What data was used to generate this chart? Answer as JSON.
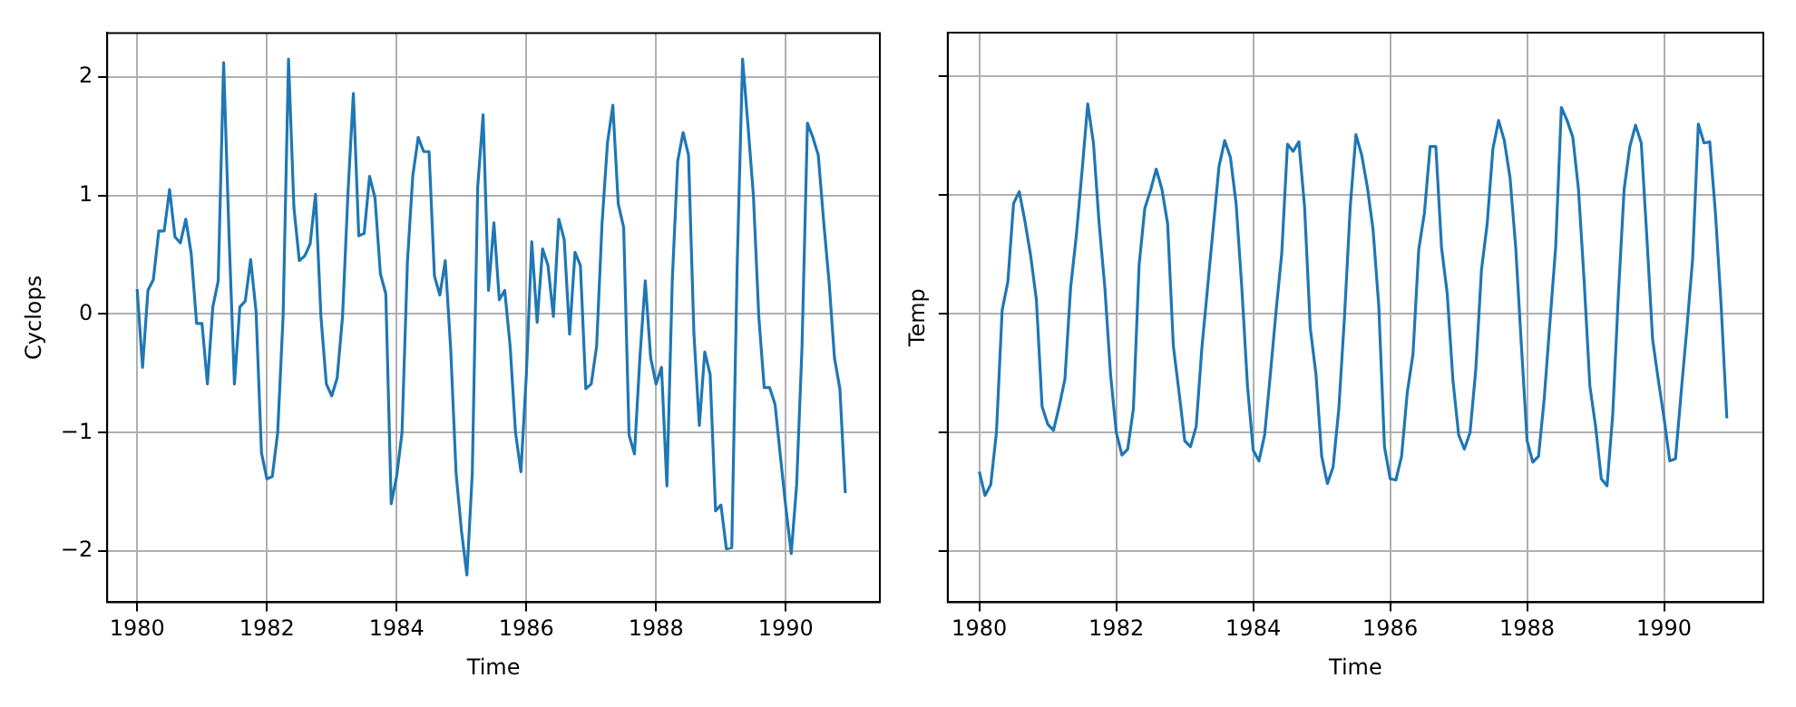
{
  "chart_data": [
    {
      "type": "line",
      "xlabel": "Time",
      "ylabel": "Cyclops",
      "grid": true,
      "legend": false,
      "x": [
        "1980-01",
        "1980-02",
        "1980-03",
        "1980-04",
        "1980-05",
        "1980-06",
        "1980-07",
        "1980-08",
        "1980-09",
        "1980-10",
        "1980-11",
        "1980-12",
        "1981-01",
        "1981-02",
        "1981-03",
        "1981-04",
        "1981-05",
        "1981-06",
        "1981-07",
        "1981-08",
        "1981-09",
        "1981-10",
        "1981-11",
        "1981-12",
        "1982-01",
        "1982-02",
        "1982-03",
        "1982-04",
        "1982-05",
        "1982-06",
        "1982-07",
        "1982-08",
        "1982-09",
        "1982-10",
        "1982-11",
        "1982-12",
        "1983-01",
        "1983-02",
        "1983-03",
        "1983-04",
        "1983-05",
        "1983-06",
        "1983-07",
        "1983-08",
        "1983-09",
        "1983-10",
        "1983-11",
        "1983-12",
        "1984-01",
        "1984-02",
        "1984-03",
        "1984-04",
        "1984-05",
        "1984-06",
        "1984-07",
        "1984-08",
        "1984-09",
        "1984-10",
        "1984-11",
        "1984-12",
        "1985-01",
        "1985-02",
        "1985-03",
        "1985-04",
        "1985-05",
        "1985-06",
        "1985-07",
        "1985-08",
        "1985-09",
        "1985-10",
        "1985-11",
        "1985-12",
        "1986-01",
        "1986-02",
        "1986-03",
        "1986-04",
        "1986-05",
        "1986-06",
        "1986-07",
        "1986-08",
        "1986-09",
        "1986-10",
        "1986-11",
        "1986-12",
        "1987-01",
        "1987-02",
        "1987-03",
        "1987-04",
        "1987-05",
        "1987-06",
        "1987-07",
        "1987-08",
        "1987-09",
        "1987-10",
        "1987-11",
        "1987-12",
        "1988-01",
        "1988-02",
        "1988-03",
        "1988-04",
        "1988-05",
        "1988-06",
        "1988-07",
        "1988-08",
        "1988-09",
        "1988-10",
        "1988-11",
        "1988-12",
        "1989-01",
        "1989-02",
        "1989-03",
        "1989-04",
        "1989-05",
        "1989-06",
        "1989-07",
        "1989-08",
        "1989-09",
        "1989-10",
        "1989-11",
        "1989-12",
        "1990-01",
        "1990-02",
        "1990-03",
        "1990-04",
        "1990-05",
        "1990-06",
        "1990-07",
        "1990-08",
        "1990-09",
        "1990-10",
        "1990-11",
        "1990-12"
      ],
      "series": [
        {
          "color": "#1f77b4",
          "values": [
            0.21,
            -0.45,
            0.2,
            0.29,
            0.7,
            0.7,
            1.05,
            0.65,
            0.6,
            0.8,
            0.51,
            -0.08,
            -0.08,
            -0.59,
            0.06,
            0.28,
            2.12,
            0.66,
            -0.59,
            0.06,
            0.11,
            0.46,
            0.02,
            -1.17,
            -1.39,
            -1.37,
            -1.0,
            -0.02,
            2.15,
            0.9,
            0.45,
            0.49,
            0.59,
            1.01,
            -0.02,
            -0.59,
            -0.69,
            -0.54,
            -0.02,
            1.02,
            1.86,
            0.66,
            0.68,
            1.16,
            0.98,
            0.34,
            0.17,
            -1.6,
            -1.37,
            -1.0,
            0.44,
            1.17,
            1.49,
            1.37,
            1.37,
            0.32,
            0.16,
            0.45,
            -0.29,
            -1.34,
            -1.83,
            -2.2,
            -1.34,
            1.07,
            1.68,
            0.2,
            0.77,
            0.12,
            0.2,
            -0.27,
            -1.0,
            -1.33,
            -0.51,
            0.61,
            -0.07,
            0.55,
            0.41,
            -0.02,
            0.8,
            0.63,
            -0.17,
            0.52,
            0.41,
            -0.63,
            -0.59,
            -0.27,
            0.76,
            1.44,
            1.76,
            0.93,
            0.73,
            -1.02,
            -1.18,
            -0.37,
            0.28,
            -0.37,
            -0.59,
            -0.45,
            -1.45,
            0.29,
            1.29,
            1.53,
            1.34,
            -0.17,
            -0.94,
            -0.32,
            -0.51,
            -1.66,
            -1.61,
            -1.98,
            -1.97,
            0.41,
            2.15,
            1.59,
            1.0,
            -0.02,
            -0.62,
            -0.62,
            -0.76,
            -1.2,
            -1.63,
            -2.02,
            -1.44,
            -0.27,
            1.61,
            1.49,
            1.34,
            0.78,
            0.27,
            -0.37,
            -0.63,
            -1.51
          ]
        }
      ],
      "xlim": [
        "1979-07-15",
        "1991-06-13"
      ],
      "xticks": [
        "1980",
        "1982",
        "1984",
        "1986",
        "1988",
        "1990"
      ],
      "ylim": [
        -2.43,
        2.37
      ],
      "yticks": [
        -2,
        -1,
        0,
        1,
        2
      ]
    },
    {
      "type": "line",
      "xlabel": "Time",
      "ylabel": "Temp",
      "grid": true,
      "legend": false,
      "tick_labels": "x",
      "x": [
        "1980-01",
        "1980-02",
        "1980-03",
        "1980-04",
        "1980-05",
        "1980-06",
        "1980-07",
        "1980-08",
        "1980-09",
        "1980-10",
        "1980-11",
        "1980-12",
        "1981-01",
        "1981-02",
        "1981-03",
        "1981-04",
        "1981-05",
        "1981-06",
        "1981-07",
        "1981-08",
        "1981-09",
        "1981-10",
        "1981-11",
        "1981-12",
        "1982-01",
        "1982-02",
        "1982-03",
        "1982-04",
        "1982-05",
        "1982-06",
        "1982-07",
        "1982-08",
        "1982-09",
        "1982-10",
        "1982-11",
        "1982-12",
        "1983-01",
        "1983-02",
        "1983-03",
        "1983-04",
        "1983-05",
        "1983-06",
        "1983-07",
        "1983-08",
        "1983-09",
        "1983-10",
        "1983-11",
        "1983-12",
        "1984-01",
        "1984-02",
        "1984-03",
        "1984-04",
        "1984-05",
        "1984-06",
        "1984-07",
        "1984-08",
        "1984-09",
        "1984-10",
        "1984-11",
        "1984-12",
        "1985-01",
        "1985-02",
        "1985-03",
        "1985-04",
        "1985-05",
        "1985-06",
        "1985-07",
        "1985-08",
        "1985-09",
        "1985-10",
        "1985-11",
        "1985-12",
        "1986-01",
        "1986-02",
        "1986-03",
        "1986-04",
        "1986-05",
        "1986-06",
        "1986-07",
        "1986-08",
        "1986-09",
        "1986-10",
        "1986-11",
        "1986-12",
        "1987-01",
        "1987-02",
        "1987-03",
        "1987-04",
        "1987-05",
        "1987-06",
        "1987-07",
        "1987-08",
        "1987-09",
        "1987-10",
        "1987-11",
        "1987-12",
        "1988-01",
        "1988-02",
        "1988-03",
        "1988-04",
        "1988-05",
        "1988-06",
        "1988-07",
        "1988-08",
        "1988-09",
        "1988-10",
        "1988-11",
        "1988-12",
        "1989-01",
        "1989-02",
        "1989-03",
        "1989-04",
        "1989-05",
        "1989-06",
        "1989-07",
        "1989-08",
        "1989-09",
        "1989-10",
        "1989-11",
        "1989-12",
        "1990-01",
        "1990-02",
        "1990-03",
        "1990-04",
        "1990-05",
        "1990-06",
        "1990-07",
        "1990-08",
        "1990-09",
        "1990-10",
        "1990-11",
        "1990-12"
      ],
      "series": [
        {
          "color": "#1f77b4",
          "values": [
            -1.33,
            -1.53,
            -1.44,
            -1.0,
            0.03,
            0.27,
            0.93,
            1.03,
            0.78,
            0.49,
            0.12,
            -0.78,
            -0.93,
            -0.98,
            -0.78,
            -0.55,
            0.22,
            0.66,
            1.2,
            1.77,
            1.44,
            0.76,
            0.22,
            -0.51,
            -1.0,
            -1.19,
            -1.14,
            -0.8,
            0.41,
            0.89,
            1.04,
            1.22,
            1.05,
            0.76,
            -0.27,
            -0.66,
            -1.07,
            -1.12,
            -0.95,
            -0.29,
            0.22,
            0.73,
            1.24,
            1.46,
            1.32,
            0.93,
            0.22,
            -0.61,
            -1.15,
            -1.24,
            -1.02,
            -0.51,
            0.02,
            0.51,
            1.43,
            1.37,
            1.45,
            0.9,
            -0.12,
            -0.51,
            -1.2,
            -1.43,
            -1.29,
            -0.8,
            -0.02,
            0.9,
            1.51,
            1.34,
            1.07,
            0.71,
            0.07,
            -1.12,
            -1.39,
            -1.4,
            -1.2,
            -0.66,
            -0.34,
            0.54,
            0.85,
            1.41,
            1.41,
            0.56,
            0.17,
            -0.56,
            -1.02,
            -1.14,
            -1.0,
            -0.47,
            0.37,
            0.76,
            1.39,
            1.63,
            1.46,
            1.15,
            0.56,
            -0.27,
            -1.07,
            -1.25,
            -1.2,
            -0.71,
            -0.07,
            0.56,
            1.74,
            1.63,
            1.49,
            1.05,
            0.27,
            -0.61,
            -0.95,
            -1.39,
            -1.45,
            -0.85,
            0.17,
            1.05,
            1.41,
            1.59,
            1.44,
            0.63,
            -0.22,
            -0.56,
            -0.88,
            -1.24,
            -1.22,
            -0.66,
            -0.12,
            0.46,
            1.6,
            1.44,
            1.45,
            0.85,
            0.07,
            -0.88
          ]
        }
      ],
      "xlim": [
        "1979-07-15",
        "1991-06-13"
      ],
      "xticks": [
        "1980",
        "1982",
        "1984",
        "1986",
        "1988",
        "1990"
      ],
      "ylim": [
        -2.43,
        2.37
      ],
      "yticks": [
        -2,
        -1,
        0,
        1,
        2
      ]
    }
  ]
}
